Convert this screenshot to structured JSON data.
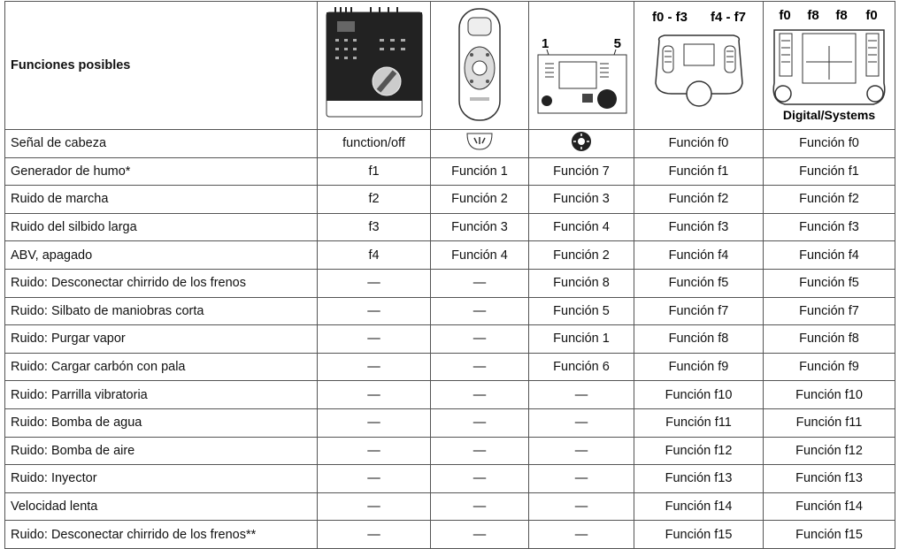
{
  "header": {
    "title": "Funciones posibles",
    "device_labels": {
      "cs": [
        "1",
        "5"
      ],
      "ms": [
        "f0 - f3",
        "f4 - f7"
      ],
      "ds": [
        "f0",
        "f8",
        "f8",
        "f0",
        "Digital/Systems"
      ]
    }
  },
  "rows": [
    [
      "Señal de cabeza",
      "function/off",
      null,
      null,
      "Función f0",
      "Función f0"
    ],
    [
      "Generador de humo*",
      "f1",
      "Función 1",
      "Función 7",
      "Función f1",
      "Función f1"
    ],
    [
      "Ruido de marcha",
      "f2",
      "Función 2",
      "Función 3",
      "Función f2",
      "Función f2"
    ],
    [
      "Ruido del silbido larga",
      "f3",
      "Función 3",
      "Función 4",
      "Función f3",
      "Función f3"
    ],
    [
      "ABV, apagado",
      "f4",
      "Función 4",
      "Función 2",
      "Función f4",
      "Función f4"
    ],
    [
      "Ruido: Desconectar chirrido de los frenos",
      "—",
      "—",
      "Función 8",
      "Función f5",
      "Función f5"
    ],
    [
      "Ruido: Silbato de maniobras corta",
      "—",
      "—",
      "Función 5",
      "Función f7",
      "Función f7"
    ],
    [
      "Ruido: Purgar vapor",
      "—",
      "—",
      "Función 1",
      "Función f8",
      "Función f8"
    ],
    [
      "Ruido: Cargar carbón con pala",
      "—",
      "—",
      "Función 6",
      "Función f9",
      "Función f9"
    ],
    [
      "Ruido: Parrilla vibratoria",
      "—",
      "—",
      "—",
      "Función f10",
      "Función f10"
    ],
    [
      "Ruido: Bomba de agua",
      "—",
      "—",
      "—",
      "Función f11",
      "Función f11"
    ],
    [
      "Ruido: Bomba de aire",
      "—",
      "—",
      "—",
      "Función f12",
      "Función f12"
    ],
    [
      "Ruido: Inyector",
      "—",
      "—",
      "—",
      "Función f13",
      "Función f13"
    ],
    [
      "Velocidad lenta",
      "—",
      "—",
      "—",
      "Función f14",
      "Función f14"
    ],
    [
      "Ruido: Desconectar chirrido de los frenos**",
      "—",
      "—",
      "—",
      "Función f15",
      "Función f15"
    ]
  ]
}
